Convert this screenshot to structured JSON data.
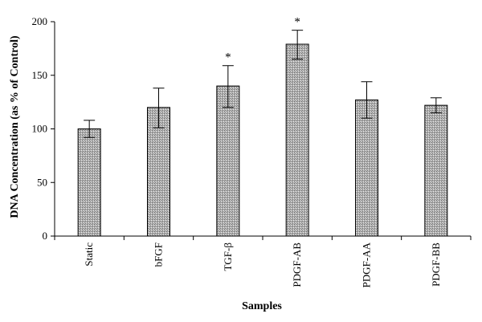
{
  "chart_data": {
    "type": "bar",
    "title": "",
    "xlabel": "Samples",
    "ylabel": "DNA Concentration (as % of Control)",
    "categories": [
      "Static",
      "bFGF",
      "TGF-β",
      "PDGF-AB",
      "PDGF-AA",
      "PDGF-BB"
    ],
    "values": [
      100,
      120,
      140,
      179,
      127,
      122
    ],
    "error_lower": [
      92,
      101,
      120,
      165,
      110,
      115
    ],
    "error_upper": [
      108,
      138,
      159,
      192,
      144,
      129
    ],
    "significance_marks": [
      "",
      "",
      "*",
      "*",
      "",
      ""
    ],
    "ylim": [
      0,
      200
    ],
    "yticks": [
      0,
      50,
      100,
      150,
      200
    ],
    "grid": false,
    "legend": "none",
    "bar_pattern": "stippled-gray"
  }
}
